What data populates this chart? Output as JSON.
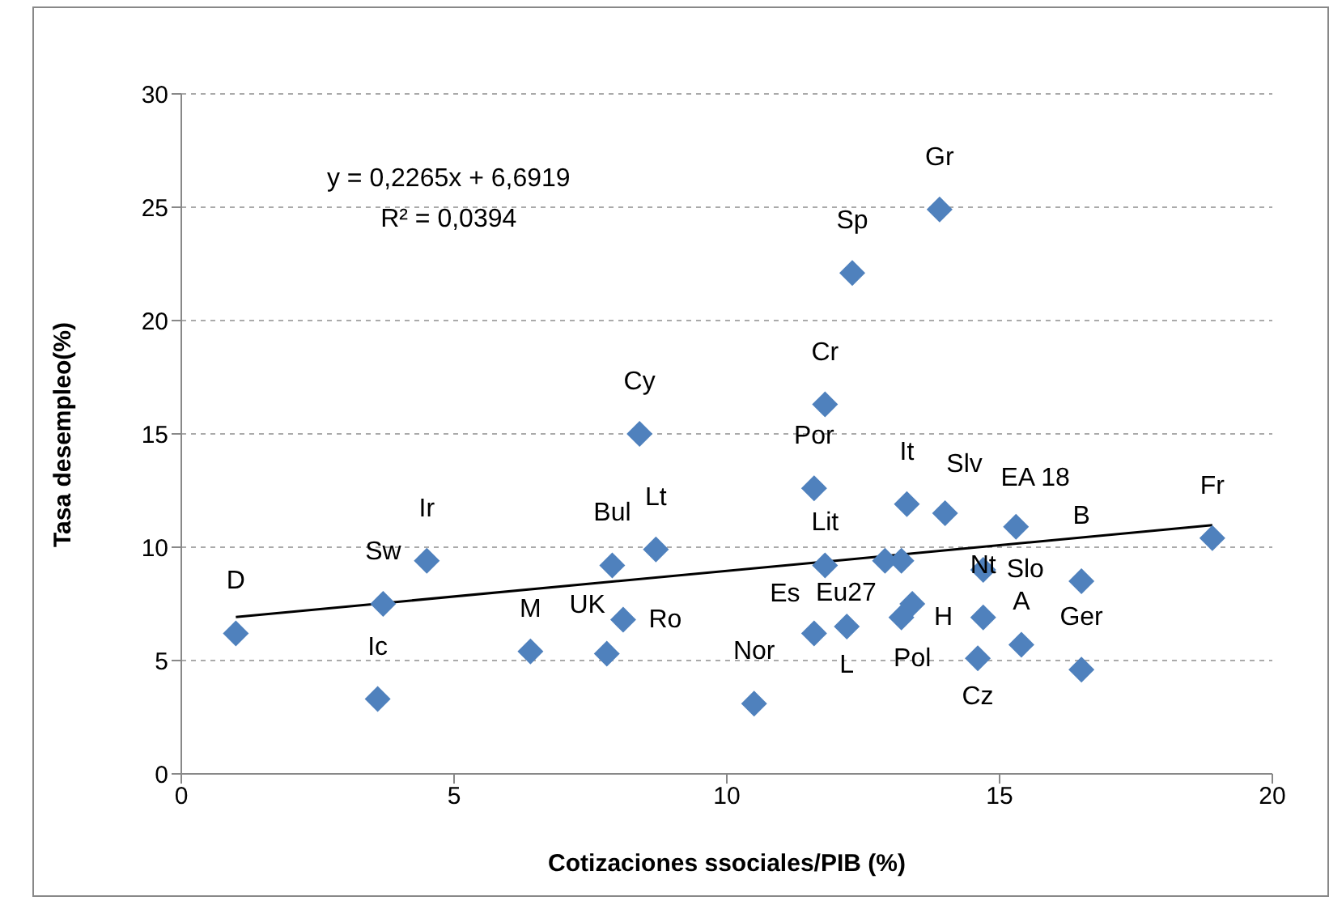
{
  "chart_data": {
    "type": "scatter",
    "xlabel": "Cotizaciones ssociales/PIB (%)",
    "ylabel": "Tasa desempleo(%)",
    "xlim": [
      0,
      20
    ],
    "xticks": [
      0,
      5,
      10,
      15,
      20
    ],
    "ylim": [
      0,
      30
    ],
    "yticks": [
      0,
      5,
      10,
      15,
      20,
      25,
      30
    ],
    "grid": "y",
    "series": [
      {
        "marker": "diamond",
        "color": "#4f81bd",
        "x": [
          1.0,
          3.7,
          4.5,
          3.6,
          6.4,
          7.8,
          8.1,
          7.9,
          8.7,
          8.4,
          10.5,
          11.6,
          11.8,
          12.3,
          13.9,
          13.3,
          14.0,
          15.3,
          11.8,
          11.6,
          12.2,
          12.9,
          13.2,
          13.2,
          13.4,
          14.7,
          14.7,
          14.6,
          15.4,
          16.5,
          16.5,
          18.9
        ],
        "values": [
          6.2,
          7.5,
          9.4,
          3.3,
          5.4,
          5.3,
          6.8,
          9.2,
          9.9,
          15.0,
          3.1,
          12.6,
          16.3,
          22.1,
          24.9,
          11.9,
          11.5,
          10.9,
          9.2,
          6.2,
          6.5,
          9.4,
          9.4,
          6.9,
          7.5,
          9.0,
          6.9,
          5.1,
          5.7,
          8.5,
          4.6,
          10.4
        ]
      },
      {
        "type": "line",
        "marker": "none",
        "color": "#000000",
        "x": [
          1.0,
          18.9
        ],
        "values": [
          6.92,
          10.97
        ]
      }
    ],
    "annotations": [
      "y = 0,2265x + 6,6919",
      "R² = 0,0394",
      {
        "text": "D",
        "x": 1.0,
        "y": 6.2
      },
      {
        "text": "Sw",
        "x": 3.7,
        "y": 7.5
      },
      {
        "text": "Ir",
        "x": 4.5,
        "y": 9.4
      },
      {
        "text": "Ic",
        "x": 3.6,
        "y": 3.3
      },
      {
        "text": "M",
        "x": 6.4,
        "y": 5.4
      },
      {
        "text": "UK",
        "x": 7.8,
        "y": 5.3
      },
      {
        "text": "Ro",
        "x": 8.1,
        "y": 6.8
      },
      {
        "text": "Bul",
        "x": 7.9,
        "y": 9.2
      },
      {
        "text": "Lt",
        "x": 8.7,
        "y": 9.9
      },
      {
        "text": "Cy",
        "x": 8.4,
        "y": 15.0
      },
      {
        "text": "Nor",
        "x": 10.5,
        "y": 3.1
      },
      {
        "text": "Por",
        "x": 11.6,
        "y": 12.6
      },
      {
        "text": "Cr",
        "x": 11.8,
        "y": 16.3
      },
      {
        "text": "Sp",
        "x": 12.3,
        "y": 22.1
      },
      {
        "text": "Gr",
        "x": 13.9,
        "y": 24.9
      },
      {
        "text": "It",
        "x": 13.3,
        "y": 11.9
      },
      {
        "text": "Slv",
        "x": 14.0,
        "y": 11.5
      },
      {
        "text": "EA 18",
        "x": 15.3,
        "y": 10.9
      },
      {
        "text": "Slo",
        "x": 14.7,
        "y": 9.0
      },
      {
        "text": "Lit",
        "x": 11.8,
        "y": 9.2
      },
      {
        "text": "Eu27",
        "x": 12.9,
        "y": 9.4
      },
      {
        "text": "Es",
        "x": 11.6,
        "y": 6.2
      },
      {
        "text": "L",
        "x": 12.2,
        "y": 6.5
      },
      {
        "text": "Pol",
        "x": 13.4,
        "y": 7.5
      },
      {
        "text": "H",
        "x": 13.2,
        "y": 6.9
      },
      {
        "text": "Nt",
        "x": 14.7,
        "y": 6.9
      },
      {
        "text": "Cz",
        "x": 14.6,
        "y": 5.1
      },
      {
        "text": "A",
        "x": 15.4,
        "y": 5.7
      },
      {
        "text": "Ger",
        "x": 16.5,
        "y": 4.6
      },
      {
        "text": "B",
        "x": 16.5,
        "y": 8.5
      },
      {
        "text": "Fr",
        "x": 18.9,
        "y": 10.4
      }
    ]
  }
}
